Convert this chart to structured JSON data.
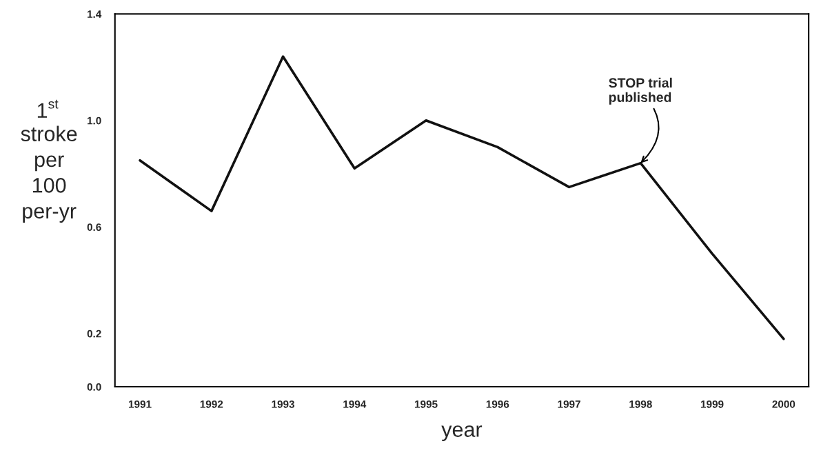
{
  "chart_data": {
    "type": "line",
    "categories": [
      "1991",
      "1992",
      "1993",
      "1994",
      "1995",
      "1996",
      "1997",
      "1998",
      "1999",
      "2000"
    ],
    "series": [
      {
        "color": "#111111",
        "values": [
          0.85,
          0.66,
          1.24,
          0.82,
          1.0,
          0.9,
          0.75,
          0.84,
          0.5,
          0.18
        ]
      }
    ],
    "xlabel": "year",
    "ylabel": "1$^{st}$ stroke per 100 per-yr",
    "ylim": [
      0,
      1.4
    ],
    "yticks": [
      {
        "value": 0,
        "label": "0.0"
      },
      {
        "value": 0.2,
        "label": "0.2"
      },
      {
        "value": 0.6,
        "label": "0.6"
      },
      {
        "value": 1.0,
        "label": "1.0"
      },
      {
        "value": 1.4,
        "label": "1.4"
      }
    ],
    "annotations": [
      {
        "text": "STOP trial\npublished",
        "x": "1998",
        "y": 0.84
      }
    ],
    "grid": false,
    "legend": false,
    "marker": "none",
    "line_style": "solid"
  }
}
